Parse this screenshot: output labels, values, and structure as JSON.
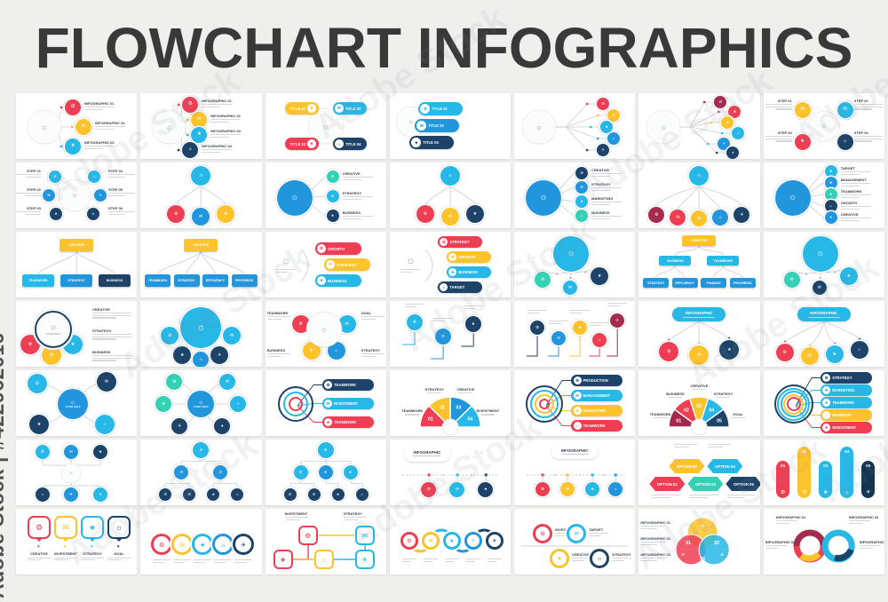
{
  "page": {
    "title": "FLOWCHART INFOGRAPHICS",
    "background": "#efefed",
    "card_color": "#ffffff"
  },
  "watermark": {
    "side_text": "Adobe Stock | #422962016",
    "tile_text": "Adobe Stock"
  },
  "palette": {
    "red": "#ee3e54",
    "maroon": "#a62a4e",
    "yellow": "#fcc32c",
    "cyan": "#27b8e8",
    "teal": "#35d1b5",
    "blue": "#2196dd",
    "navy": "#1e4368",
    "darknavy": "#16334f",
    "line_gray": "#d3d7da",
    "text_dark": "#39434c",
    "title_color": "#393939"
  },
  "icon_glyphs": [
    "⚙",
    "✉",
    "★",
    "☼",
    "✈",
    "♦",
    "⚑",
    "⚖"
  ],
  "cards": [
    {
      "t": "branch",
      "items": [
        {
          "c": "red",
          "l": "INFOGRAPHIC 01"
        },
        {
          "c": "yellow",
          "l": "INFOGRAPHIC 02"
        },
        {
          "c": "cyan",
          "l": "INFOGRAPHIC 03"
        }
      ]
    },
    {
      "t": "branch",
      "items": [
        {
          "c": "red",
          "l": "INFOGRAPHIC 01"
        },
        {
          "c": "yellow",
          "l": "INFOGRAPHIC 02"
        },
        {
          "c": "cyan",
          "l": "INFOGRAPHIC 03"
        },
        {
          "c": "navy",
          "l": "INFOGRAPHIC 04"
        }
      ]
    },
    {
      "t": "pillsquad",
      "items": [
        {
          "c": "yellow",
          "l": "TITLE 01"
        },
        {
          "c": "cyan",
          "l": "TITLE 02"
        },
        {
          "c": "red",
          "l": "TITLE 03"
        },
        {
          "c": "navy",
          "l": "TITLE 04"
        }
      ]
    },
    {
      "t": "pillstack",
      "items": [
        {
          "c": "cyan",
          "l": "TITLE 01"
        },
        {
          "c": "blue",
          "l": "TITLE 02"
        },
        {
          "c": "navy",
          "l": "TITLE 03"
        }
      ]
    },
    {
      "t": "wires",
      "items": [
        {
          "c": "red"
        },
        {
          "c": "yellow"
        },
        {
          "c": "cyan"
        },
        {
          "c": "blue"
        },
        {
          "c": "navy"
        }
      ]
    },
    {
      "t": "wires",
      "items": [
        {
          "c": "maroon"
        },
        {
          "c": "red"
        },
        {
          "c": "yellow"
        },
        {
          "c": "cyan"
        },
        {
          "c": "blue"
        },
        {
          "c": "navy"
        }
      ]
    },
    {
      "t": "around",
      "items": [
        {
          "c": "yellow",
          "l": "STEP 01"
        },
        {
          "c": "cyan",
          "l": "STEP 02"
        },
        {
          "c": "red",
          "l": "STEP 03"
        },
        {
          "c": "navy",
          "l": "STEP 04"
        }
      ]
    },
    {
      "t": "around",
      "items": [
        {
          "c": "cyan",
          "l": "STEP 01"
        },
        {
          "c": "blue",
          "l": "STEP 02"
        },
        {
          "c": "navy",
          "l": "STEP 03"
        },
        {
          "c": "cyan",
          "l": "STEP 04"
        },
        {
          "c": "blue",
          "l": "STEP 05"
        },
        {
          "c": "navy",
          "l": "STEP 06"
        }
      ]
    },
    {
      "t": "tree",
      "items": [
        {
          "c": "red"
        },
        {
          "c": "blue"
        },
        {
          "c": "yellow"
        }
      ]
    },
    {
      "t": "biglist",
      "items": [
        {
          "c": "teal",
          "l": "CREATIVE"
        },
        {
          "c": "cyan",
          "l": "STRATEGY"
        },
        {
          "c": "navy",
          "l": "BUSINESS"
        }
      ]
    },
    {
      "t": "tree",
      "items": [
        {
          "c": "red"
        },
        {
          "c": "yellow"
        },
        {
          "c": "navy"
        }
      ]
    },
    {
      "t": "biglist",
      "items": [
        {
          "c": "navy",
          "l": "CREATIVE"
        },
        {
          "c": "blue",
          "l": "STRATEGY"
        },
        {
          "c": "cyan",
          "l": "MARKETING"
        },
        {
          "c": "teal",
          "l": "BUSINESS"
        }
      ]
    },
    {
      "t": "tree",
      "items": [
        {
          "c": "maroon"
        },
        {
          "c": "red"
        },
        {
          "c": "yellow"
        },
        {
          "c": "blue"
        },
        {
          "c": "navy"
        }
      ]
    },
    {
      "t": "biglist",
      "items": [
        {
          "c": "cyan",
          "l": "TARGET"
        },
        {
          "c": "blue",
          "l": "MANAGEMENT"
        },
        {
          "c": "teal",
          "l": "TEAMWORK"
        },
        {
          "c": "navy",
          "l": "GROWTH"
        },
        {
          "c": "blue",
          "l": "CREATIVE"
        }
      ]
    },
    {
      "t": "org",
      "levels": [
        [
          {
            "c": "yellow",
            "l": "CREATIVE"
          }
        ],
        [
          {
            "c": "cyan",
            "l": "TEAMWORK"
          },
          {
            "c": "blue",
            "l": "STRATEGY"
          },
          {
            "c": "navy",
            "l": "BUSINESS"
          }
        ]
      ]
    },
    {
      "t": "org",
      "levels": [
        [
          {
            "c": "yellow",
            "l": "CREATIVE"
          }
        ],
        [
          {
            "c": "blue",
            "l": "TEAMWORK"
          },
          {
            "c": "blue",
            "l": "STRATEGY"
          },
          {
            "c": "blue",
            "l": "EFFICIENCY"
          },
          {
            "c": "blue",
            "l": "PROGRESS"
          }
        ]
      ]
    },
    {
      "t": "arcpills",
      "items": [
        {
          "c": "red",
          "l": "GROWTH"
        },
        {
          "c": "yellow",
          "l": "STRATEGY"
        },
        {
          "c": "cyan",
          "l": "BUSINESS"
        }
      ]
    },
    {
      "t": "arcpills",
      "items": [
        {
          "c": "red",
          "l": "STRATEGY"
        },
        {
          "c": "yellow",
          "l": "GROWTH"
        },
        {
          "c": "cyan",
          "l": "BUSINESS"
        },
        {
          "c": "navy",
          "l": "TARGET"
        }
      ]
    },
    {
      "t": "ctree",
      "items": [
        {
          "c": "teal"
        },
        {
          "c": "cyan"
        },
        {
          "c": "navy"
        }
      ]
    },
    {
      "t": "org",
      "levels": [
        [
          {
            "c": "yellow",
            "l": "CREATIVE"
          }
        ],
        [
          {
            "c": "cyan",
            "l": "BUSINESS"
          },
          {
            "c": "cyan",
            "l": "TEAMWORK"
          }
        ],
        [
          {
            "c": "blue",
            "l": "STRATEGY"
          },
          {
            "c": "blue",
            "l": "EFFICIENCY"
          },
          {
            "c": "blue",
            "l": "FINANCE"
          },
          {
            "c": "blue",
            "l": "PROGRESS"
          }
        ]
      ]
    },
    {
      "t": "ctree",
      "items": [
        {
          "c": "teal"
        },
        {
          "c": "navy"
        },
        {
          "c": "cyan"
        }
      ]
    },
    {
      "t": "flower",
      "center": "YOUR IDEA",
      "items": [
        {
          "c": "red"
        },
        {
          "c": "yellow"
        },
        {
          "c": "cyan"
        }
      ],
      "sides": [
        "CREATIVE",
        "STRATEGY",
        "BUSINESS"
      ]
    },
    {
      "t": "flowertop",
      "items": [
        {
          "c": "cyan"
        },
        {
          "c": "cyan"
        },
        {
          "c": "navy"
        },
        {
          "c": "blue"
        },
        {
          "c": "navy"
        }
      ]
    },
    {
      "t": "flower4",
      "items": [
        {
          "c": "red"
        },
        {
          "c": "cyan"
        },
        {
          "c": "yellow"
        },
        {
          "c": "blue"
        }
      ],
      "labels": [
        "TEAMWORK",
        "GOAL",
        "BUSINESS",
        "STRATEGY"
      ]
    },
    {
      "t": "elbow",
      "items": [
        {
          "c": "cyan"
        },
        {
          "c": "blue"
        },
        {
          "c": "navy"
        }
      ]
    },
    {
      "t": "elbow",
      "items": [
        {
          "c": "navy"
        },
        {
          "c": "blue"
        },
        {
          "c": "yellow"
        },
        {
          "c": "red"
        },
        {
          "c": "maroon"
        }
      ]
    },
    {
      "t": "headertree",
      "header": "INFOGRAPHIC",
      "items": [
        {
          "c": "red"
        },
        {
          "c": "yellow"
        },
        {
          "c": "navy"
        }
      ]
    },
    {
      "t": "headertree",
      "header": "INFOGRAPHIC",
      "items": [
        {
          "c": "red"
        },
        {
          "c": "yellow"
        },
        {
          "c": "cyan"
        },
        {
          "c": "navy"
        }
      ]
    },
    {
      "t": "mindmap",
      "center": "YOUR IDEA",
      "items": [
        {
          "c": "cyan"
        },
        {
          "c": "navy"
        },
        {
          "c": "navy"
        },
        {
          "c": "cyan"
        }
      ]
    },
    {
      "t": "mindmap",
      "center": "YOUR IDEA",
      "items": [
        {
          "c": "teal"
        },
        {
          "c": "cyan"
        },
        {
          "c": "teal"
        },
        {
          "c": "cyan"
        },
        {
          "c": "navy"
        },
        {
          "c": "navy"
        }
      ]
    },
    {
      "t": "target",
      "items": [
        {
          "c": "navy",
          "l": "TEAMWORK"
        },
        {
          "c": "cyan",
          "l": "INVESTMENT"
        },
        {
          "c": "red",
          "l": "TEAMWORK"
        }
      ]
    },
    {
      "t": "fan",
      "items": [
        {
          "c": "red",
          "n": "01",
          "l": "TEAMWORK"
        },
        {
          "c": "yellow",
          "n": "02",
          "l": "STRATEGY"
        },
        {
          "c": "blue",
          "n": "03",
          "l": "CREATIVE"
        },
        {
          "c": "cyan",
          "n": "04",
          "l": "INVESTMENT"
        }
      ]
    },
    {
      "t": "target",
      "items": [
        {
          "c": "navy",
          "l": "PRODUCTION"
        },
        {
          "c": "cyan",
          "l": "MANAGEMENT"
        },
        {
          "c": "yellow",
          "l": "MARKETING"
        },
        {
          "c": "red",
          "l": "TEAMWORK"
        }
      ]
    },
    {
      "t": "fan",
      "items": [
        {
          "c": "maroon",
          "n": "01",
          "l": "TEAMWORK"
        },
        {
          "c": "red",
          "n": "02",
          "l": "BUSINESS"
        },
        {
          "c": "yellow",
          "n": "03",
          "l": "CREATIVE"
        },
        {
          "c": "cyan",
          "n": "04",
          "l": "STRATEGY"
        },
        {
          "c": "navy",
          "n": "05",
          "l": "GOAL"
        }
      ]
    },
    {
      "t": "target",
      "items": [
        {
          "c": "navy",
          "l": "STRATEGY"
        },
        {
          "c": "cyan",
          "l": "MARKETING"
        },
        {
          "c": "cyan",
          "l": "TEAMWORK"
        },
        {
          "c": "yellow",
          "l": "BUSINESS"
        },
        {
          "c": "red",
          "l": "INVESTMENT"
        }
      ]
    },
    {
      "t": "updown",
      "top": [
        {
          "c": "cyan"
        },
        {
          "c": "blue"
        },
        {
          "c": "navy"
        }
      ],
      "bottom": [
        {
          "c": "navy"
        },
        {
          "c": "blue"
        },
        {
          "c": "cyan"
        }
      ]
    },
    {
      "t": "ltree",
      "levels": [
        [
          {
            "c": "cyan"
          }
        ],
        [
          {
            "c": "blue"
          },
          {
            "c": "blue"
          }
        ],
        [
          {
            "c": "navy"
          },
          {
            "c": "navy"
          },
          {
            "c": "navy"
          },
          {
            "c": "navy"
          }
        ]
      ]
    },
    {
      "t": "ltree",
      "levels": [
        [
          {
            "c": "cyan"
          }
        ],
        [
          {
            "c": "cyan"
          },
          {
            "c": "blue"
          },
          {
            "c": "cyan"
          }
        ],
        [
          {
            "c": "navy"
          },
          {
            "c": "navy"
          },
          {
            "c": "navy"
          },
          {
            "c": "navy"
          }
        ]
      ]
    },
    {
      "t": "timeline",
      "header": "INFOGRAPHIC",
      "pos": "left",
      "items": [
        {
          "c": "red"
        },
        {
          "c": "cyan"
        },
        {
          "c": "navy"
        }
      ]
    },
    {
      "t": "timeline",
      "header": "INFOGRAPHIC",
      "pos": "center",
      "items": [
        {
          "c": "red"
        },
        {
          "c": "yellow"
        },
        {
          "c": "cyan"
        },
        {
          "c": "blue"
        }
      ]
    },
    {
      "t": "options",
      "items": [
        {
          "c": "red",
          "l": "OPTION 01"
        },
        {
          "c": "yellow",
          "l": "OPTION 02"
        },
        {
          "c": "teal",
          "l": "OPTION 03"
        },
        {
          "c": "cyan",
          "l": "OPTION 04"
        },
        {
          "c": "navy",
          "l": "OPTION 05"
        }
      ]
    },
    {
      "t": "bars",
      "items": [
        {
          "c": "red",
          "n": "01"
        },
        {
          "c": "yellow",
          "n": "02"
        },
        {
          "c": "cyan",
          "n": "03"
        },
        {
          "c": "cyan",
          "n": "04"
        },
        {
          "c": "darknavy",
          "n": "05"
        }
      ]
    },
    {
      "t": "pins",
      "items": [
        {
          "c": "red",
          "l": "CREATIVE"
        },
        {
          "c": "yellow",
          "l": "INVESTMENT"
        },
        {
          "c": "cyan",
          "l": "STRATEGY"
        },
        {
          "c": "navy",
          "l": "GOAL"
        }
      ]
    },
    {
      "t": "chain",
      "items": [
        {
          "c": "red"
        },
        {
          "c": "yellow"
        },
        {
          "c": "cyan"
        },
        {
          "c": "blue"
        },
        {
          "c": "navy"
        }
      ]
    },
    {
      "t": "snake",
      "labels": [
        "INVESTMENT",
        "STRATEGY"
      ],
      "items": [
        {
          "c": "red"
        },
        {
          "c": "cyan"
        },
        {
          "c": "red"
        },
        {
          "c": "yellow"
        },
        {
          "c": "cyan"
        }
      ]
    },
    {
      "t": "wave",
      "items": [
        {
          "c": "red"
        },
        {
          "c": "yellow"
        },
        {
          "c": "cyan"
        },
        {
          "c": "blue"
        },
        {
          "c": "navy"
        }
      ]
    },
    {
      "t": "loop",
      "items": [
        {
          "c": "red",
          "l": "INVESTMENT"
        },
        {
          "c": "cyan",
          "l": "TARGET"
        },
        {
          "c": "yellow",
          "l": "CREATIVE"
        },
        {
          "c": "navy",
          "l": "STRATEGY"
        }
      ]
    },
    {
      "t": "venn",
      "items": [
        {
          "c": "yellow",
          "n": "01"
        },
        {
          "c": "red",
          "n": "02"
        },
        {
          "c": "cyan",
          "n": "03"
        }
      ],
      "texts": [
        "INFOGRAPHIC 01",
        "INFOGRAPHIC 02",
        "INFOGRAPHIC 03"
      ]
    },
    {
      "t": "infinity",
      "items": [
        {
          "c": "maroon"
        },
        {
          "c": "red"
        },
        {
          "c": "yellow"
        },
        {
          "c": "cyan"
        },
        {
          "c": "navy"
        }
      ],
      "texts": [
        "INFOGRAPHIC 01",
        "INFOGRAPHIC 02",
        "INFOGRAPHIC 03",
        "INFOGRAPHIC 04"
      ]
    }
  ]
}
